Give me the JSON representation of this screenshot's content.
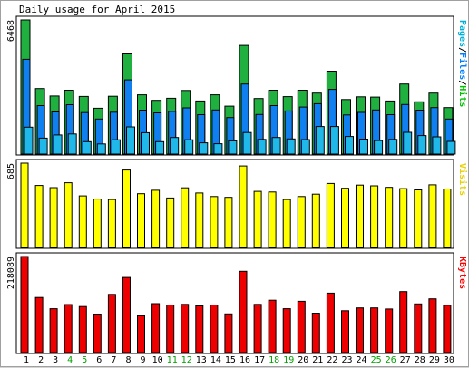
{
  "chart_data": {
    "type": "bar",
    "title": "Daily usage for April 2015",
    "categories": [
      "1",
      "2",
      "3",
      "4",
      "5",
      "6",
      "7",
      "8",
      "9",
      "10",
      "11",
      "12",
      "13",
      "14",
      "15",
      "16",
      "17",
      "18",
      "19",
      "20",
      "21",
      "22",
      "23",
      "24",
      "25",
      "26",
      "27",
      "28",
      "29",
      "30"
    ],
    "weekend_days": [
      "4",
      "5",
      "11",
      "12",
      "18",
      "19",
      "25",
      "26"
    ],
    "panels": [
      {
        "name": "hits_panel",
        "ymax": 6468,
        "ymax_label": "6468",
        "legend": [
          {
            "text": "Pages",
            "color": "#00b0d8"
          },
          {
            "text": "/",
            "color": "#000000"
          },
          {
            "text": "Files",
            "color": "#0080ff"
          },
          {
            "text": "/",
            "color": "#000000"
          },
          {
            "text": "Hits",
            "color": "#00c000"
          }
        ],
        "series": [
          {
            "name": "Hits",
            "color": "#20b040",
            "values": [
              6468,
              3160,
              2800,
              3080,
              2780,
              2210,
              2790,
              4830,
              2860,
              2590,
              2690,
              3070,
              2560,
              2860,
              2310,
              5240,
              2680,
              3080,
              2770,
              3080,
              2940,
              4000,
              2630,
              2760,
              2750,
              2560,
              3380,
              2520,
              2940,
              2240
            ]
          },
          {
            "name": "Files",
            "color": "#1080f0",
            "values": [
              4570,
              2340,
              2030,
              2380,
              2000,
              1690,
              2020,
              3580,
              2120,
              1990,
              2060,
              2230,
              1900,
              2130,
              1760,
              3380,
              1910,
              2340,
              2080,
              2270,
              2430,
              3120,
              1890,
              2010,
              2130,
              1900,
              2390,
              2120,
              2240,
              1690
            ]
          },
          {
            "name": "Pages",
            "color": "#20b8e8",
            "values": [
              1300,
              770,
              920,
              970,
              600,
              490,
              690,
              1310,
              1030,
              600,
              800,
              690,
              540,
              500,
              640,
              1040,
              710,
              800,
              730,
              700,
              1330,
              1330,
              850,
              720,
              650,
              710,
              1050,
              890,
              830,
              610
            ]
          }
        ]
      },
      {
        "name": "visits_panel",
        "ymax": 685,
        "ymax_label": "685",
        "legend": [
          {
            "text": "Visits",
            "color": "#e8d000"
          }
        ],
        "series": [
          {
            "name": "Visits",
            "color": "#ffff00",
            "values": [
              685,
              504,
              486,
              526,
              419,
              393,
              390,
              629,
              437,
              465,
              402,
              485,
              443,
              414,
              407,
              662,
              456,
              451,
              390,
              414,
              433,
              520,
              481,
              507,
              501,
              488,
              478,
              468,
              509,
              475
            ]
          }
        ]
      },
      {
        "name": "kbytes_panel",
        "ymax": 218089,
        "ymax_label": "218089",
        "legend": [
          {
            "text": "KBytes",
            "color": "#ff0000"
          }
        ],
        "series": [
          {
            "name": "KBytes",
            "color": "#ee0000",
            "values": [
              218089,
              125000,
              99500,
              109000,
              104500,
              87500,
              132000,
              170500,
              83500,
              111000,
              108000,
              109500,
              106000,
              108000,
              87800,
              184500,
              109500,
              119000,
              99500,
              116500,
              89600,
              135000,
              95000,
              101500,
              101500,
              99000,
              138500,
              110500,
              122000,
              107500
            ]
          }
        ]
      }
    ]
  }
}
